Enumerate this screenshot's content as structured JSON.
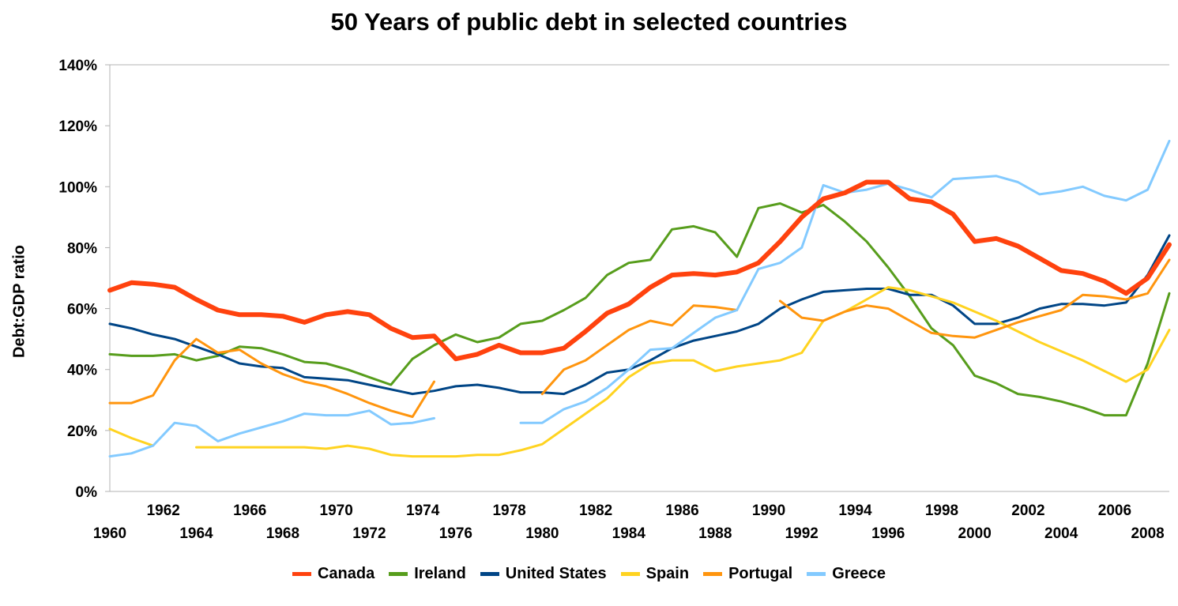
{
  "chart_data": {
    "type": "line",
    "title": "50 Years of public debt in selected countries",
    "xlabel": "",
    "ylabel": "Debt:GDP ratio",
    "x": [
      1960,
      1961,
      1962,
      1963,
      1964,
      1965,
      1966,
      1967,
      1968,
      1969,
      1970,
      1971,
      1972,
      1973,
      1974,
      1975,
      1976,
      1977,
      1978,
      1979,
      1980,
      1981,
      1982,
      1983,
      1984,
      1985,
      1986,
      1987,
      1988,
      1989,
      1990,
      1991,
      1992,
      1993,
      1994,
      1995,
      1996,
      1997,
      1998,
      1999,
      2000,
      2001,
      2002,
      2003,
      2004,
      2005,
      2006,
      2007,
      2008,
      2009
    ],
    "xlim": [
      1960,
      2009
    ],
    "x_ticks_upper": [
      "1962",
      "1966",
      "1970",
      "1974",
      "1978",
      "1982",
      "1986",
      "1990",
      "1994",
      "1998",
      "2002",
      "2006"
    ],
    "x_ticks_lower": [
      "1960",
      "1964",
      "1968",
      "1972",
      "1976",
      "1980",
      "1984",
      "1988",
      "1992",
      "1996",
      "2000",
      "2004",
      "2008"
    ],
    "ylim": [
      0,
      140
    ],
    "y_ticks": [
      "0%",
      "20%",
      "40%",
      "60%",
      "80%",
      "100%",
      "120%",
      "140%"
    ],
    "grid": "horizontal-top-only",
    "legend_position": "bottom",
    "series": [
      {
        "name": "Canada",
        "color": "#ff420e",
        "width": 6,
        "values": [
          66,
          68.5,
          68,
          67,
          63,
          59.5,
          58,
          58,
          57.5,
          55.5,
          58,
          59,
          58,
          53.5,
          50.5,
          51,
          43.5,
          45,
          48,
          45.5,
          45.5,
          47,
          52.5,
          58.5,
          61.5,
          67,
          71,
          71.5,
          71,
          72,
          75,
          82,
          90,
          96,
          98,
          101.5,
          101.5,
          96,
          95,
          91,
          82,
          83,
          80.5,
          76.5,
          72.5,
          71.5,
          69,
          65,
          70,
          81
        ]
      },
      {
        "name": "Ireland",
        "color": "#579d1c",
        "width": 3,
        "values": [
          45,
          44.5,
          44.5,
          45,
          43,
          44.5,
          47.5,
          47,
          45,
          42.5,
          42,
          40,
          37.5,
          35,
          43.5,
          48,
          51.5,
          49,
          50.5,
          55,
          56,
          59.5,
          63.5,
          71,
          75,
          76,
          86,
          87,
          85,
          77,
          93,
          94.5,
          91.5,
          94,
          88.5,
          82,
          73.5,
          64,
          53.5,
          48,
          38,
          35.5,
          32,
          31,
          29.5,
          27.5,
          25,
          25,
          42,
          65
        ]
      },
      {
        "name": "United States",
        "color": "#004586",
        "width": 3,
        "values": [
          55,
          53.5,
          51.5,
          50,
          47.5,
          45,
          42,
          41,
          40.5,
          37.5,
          37,
          36.5,
          35,
          33.5,
          32,
          33,
          34.5,
          35,
          34,
          32.5,
          32.5,
          32,
          35,
          39,
          40,
          43,
          47,
          49.5,
          51,
          52.5,
          55,
          60,
          63,
          65.5,
          66,
          66.5,
          66.5,
          64.5,
          64.5,
          61,
          55,
          55,
          57,
          60,
          61.5,
          61.5,
          61,
          62,
          71,
          84
        ]
      },
      {
        "name": "Spain",
        "color": "#ffd320",
        "width": 3,
        "values": [
          20.5,
          17.5,
          15,
          null,
          14.5,
          14.5,
          14.5,
          14.5,
          14.5,
          14.5,
          14,
          15,
          14,
          12,
          11.5,
          11.5,
          11.5,
          12,
          12,
          13.5,
          15.5,
          20.5,
          25.5,
          30.5,
          37.5,
          42,
          43,
          43,
          39.5,
          41,
          42,
          43,
          45.5,
          56,
          59,
          63,
          67,
          66,
          64,
          62,
          59,
          56,
          52.5,
          49,
          46,
          43,
          39.5,
          36,
          40,
          53
        ]
      },
      {
        "name": "Portugal",
        "color": "#ff950e",
        "width": 3,
        "values": [
          29,
          29,
          31.5,
          43,
          50,
          45.5,
          46.5,
          42,
          38.5,
          36,
          34.5,
          32,
          29,
          26.5,
          24.5,
          36,
          null,
          null,
          null,
          null,
          32,
          40,
          43,
          48,
          53,
          56,
          54.5,
          61,
          60.5,
          59.5,
          null,
          62.5,
          57,
          56,
          59,
          61,
          60,
          56,
          52,
          51,
          50.5,
          53,
          55.5,
          57.5,
          59.5,
          64.5,
          64,
          63,
          65,
          76
        ]
      },
      {
        "name": "Greece",
        "color": "#83caff",
        "width": 3,
        "values": [
          11.5,
          12.5,
          15,
          22.5,
          21.5,
          16.5,
          19,
          21,
          23,
          25.5,
          25,
          25,
          26.5,
          22,
          22.5,
          24,
          null,
          null,
          null,
          22.5,
          22.5,
          27,
          29.5,
          34,
          40,
          46.5,
          47,
          52,
          57,
          59.5,
          73,
          75,
          80,
          100.5,
          98,
          99,
          101,
          99,
          96.5,
          102.5,
          103,
          103.5,
          101.5,
          97.5,
          98.5,
          100,
          97,
          95.5,
          99,
          115
        ]
      }
    ]
  }
}
